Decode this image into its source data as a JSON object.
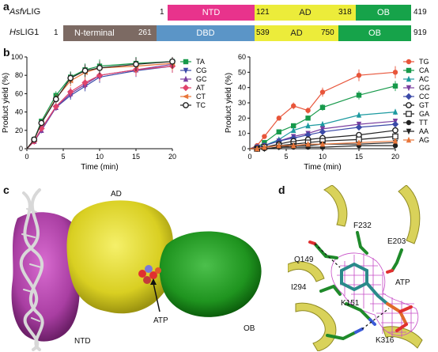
{
  "panel_a": {
    "letter": "a",
    "rows": [
      {
        "label_prefix": "Asfv",
        "label_suffix": "LIG",
        "segments": [
          {
            "name": "NTD",
            "start": 1,
            "end": 121,
            "color": "#e8338c"
          },
          {
            "name": "AD",
            "start": 121,
            "end": 318,
            "color": "#ecec3a"
          },
          {
            "name": "OB",
            "start": 318,
            "end": 419,
            "color": "#16a34a"
          }
        ],
        "numbers": [
          "1",
          "121",
          "318",
          "419"
        ]
      },
      {
        "label_prefix": "Hs",
        "label_suffix": "LIG1",
        "segments": [
          {
            "name": "N-terminal",
            "start": 1,
            "end": 261,
            "color": "#7c6a63"
          },
          {
            "name": "DBD",
            "start": 261,
            "end": 539,
            "color": "#5b95c7"
          },
          {
            "name": "AD",
            "start": 539,
            "end": 750,
            "color": "#ecec3a"
          },
          {
            "name": "OB",
            "start": 750,
            "end": 919,
            "color": "#16a34a"
          }
        ],
        "numbers": [
          "1",
          "261",
          "539",
          "750",
          "919"
        ]
      }
    ]
  },
  "panel_b": {
    "letter": "b"
  },
  "chart_data": [
    {
      "type": "line",
      "xlabel": "Time (min)",
      "ylabel": "Product yield (%)",
      "xlim": [
        0,
        20
      ],
      "ylim": [
        0,
        100
      ],
      "xticks": [
        0,
        5,
        10,
        15,
        20
      ],
      "yticks": [
        0,
        20,
        40,
        60,
        80,
        100
      ],
      "x": [
        1,
        2,
        4,
        6,
        8,
        10,
        15,
        20
      ],
      "series": [
        {
          "name": "TA",
          "color": "#16994a",
          "marker": "square",
          "values": [
            10,
            30,
            58,
            78,
            86,
            90,
            93,
            95
          ]
        },
        {
          "name": "CG",
          "color": "#3b4aa8",
          "marker": "triangle-down",
          "values": [
            8,
            20,
            45,
            58,
            68,
            78,
            85,
            90
          ]
        },
        {
          "name": "GC",
          "color": "#7a3fa0",
          "marker": "triangle-up",
          "values": [
            8,
            20,
            45,
            60,
            70,
            80,
            86,
            92
          ]
        },
        {
          "name": "AT",
          "color": "#e0436b",
          "marker": "diamond",
          "values": [
            8,
            22,
            46,
            62,
            72,
            80,
            86,
            90
          ]
        },
        {
          "name": "CT",
          "color": "#e8763a",
          "marker": "triangle-left",
          "values": [
            10,
            28,
            55,
            74,
            83,
            88,
            90,
            93
          ]
        },
        {
          "name": "TC",
          "color": "#222222",
          "marker": "circle-open",
          "values": [
            10,
            28,
            54,
            77,
            85,
            88,
            92,
            95
          ]
        }
      ]
    },
    {
      "type": "line",
      "xlabel": "Time (min)",
      "ylabel": "Product yield (%)",
      "xlim": [
        0,
        20
      ],
      "ylim": [
        0,
        60
      ],
      "xticks": [
        0,
        5,
        10,
        15,
        20
      ],
      "yticks": [
        0,
        10,
        20,
        30,
        40,
        50,
        60
      ],
      "x": [
        1,
        2,
        4,
        6,
        8,
        10,
        15,
        20
      ],
      "series": [
        {
          "name": "TG",
          "color": "#e8553a",
          "marker": "circle",
          "values": [
            2,
            8,
            20,
            28,
            25,
            37,
            48,
            50
          ]
        },
        {
          "name": "CA",
          "color": "#16994a",
          "marker": "square",
          "values": [
            1,
            4,
            11,
            15,
            20,
            27,
            35,
            41
          ]
        },
        {
          "name": "AC",
          "color": "#1c9aa0",
          "marker": "triangle-up",
          "values": [
            1,
            2,
            6,
            12,
            15,
            16,
            22,
            24
          ]
        },
        {
          "name": "GG",
          "color": "#7a3fa0",
          "marker": "triangle-down",
          "values": [
            1,
            2,
            5,
            8,
            10,
            13,
            16,
            18
          ]
        },
        {
          "name": "CC",
          "color": "#3b4aa8",
          "marker": "diamond",
          "values": [
            1,
            2,
            5,
            7,
            9,
            11,
            14,
            16
          ]
        },
        {
          "name": "GT",
          "color": "#222222",
          "marker": "circle-open",
          "values": [
            0,
            1,
            3,
            5,
            6,
            7,
            9,
            12
          ]
        },
        {
          "name": "GA",
          "color": "#222222",
          "marker": "square-open",
          "values": [
            0,
            1,
            2,
            3,
            4,
            5,
            6,
            8
          ]
        },
        {
          "name": "TT",
          "color": "#222222",
          "marker": "circle",
          "values": [
            0,
            0,
            1,
            1,
            1,
            1,
            2,
            2
          ]
        },
        {
          "name": "AA",
          "color": "#222222",
          "marker": "triangle-down",
          "values": [
            0,
            0,
            1,
            2,
            2,
            3,
            3,
            4
          ]
        },
        {
          "name": "AG",
          "color": "#e8763a",
          "marker": "triangle-up",
          "values": [
            0,
            1,
            2,
            2,
            3,
            3,
            4,
            5
          ]
        }
      ]
    }
  ],
  "panel_c": {
    "letter": "c",
    "labels": {
      "ad": "AD",
      "ntd": "NTD",
      "atp": "ATP",
      "ob": "OB"
    }
  },
  "panel_d": {
    "letter": "d",
    "labels": {
      "f232": "F232",
      "e203": "E203",
      "q149": "Q149",
      "i294": "I294",
      "atp": "ATP",
      "k151": "K151",
      "k316": "K316"
    }
  }
}
